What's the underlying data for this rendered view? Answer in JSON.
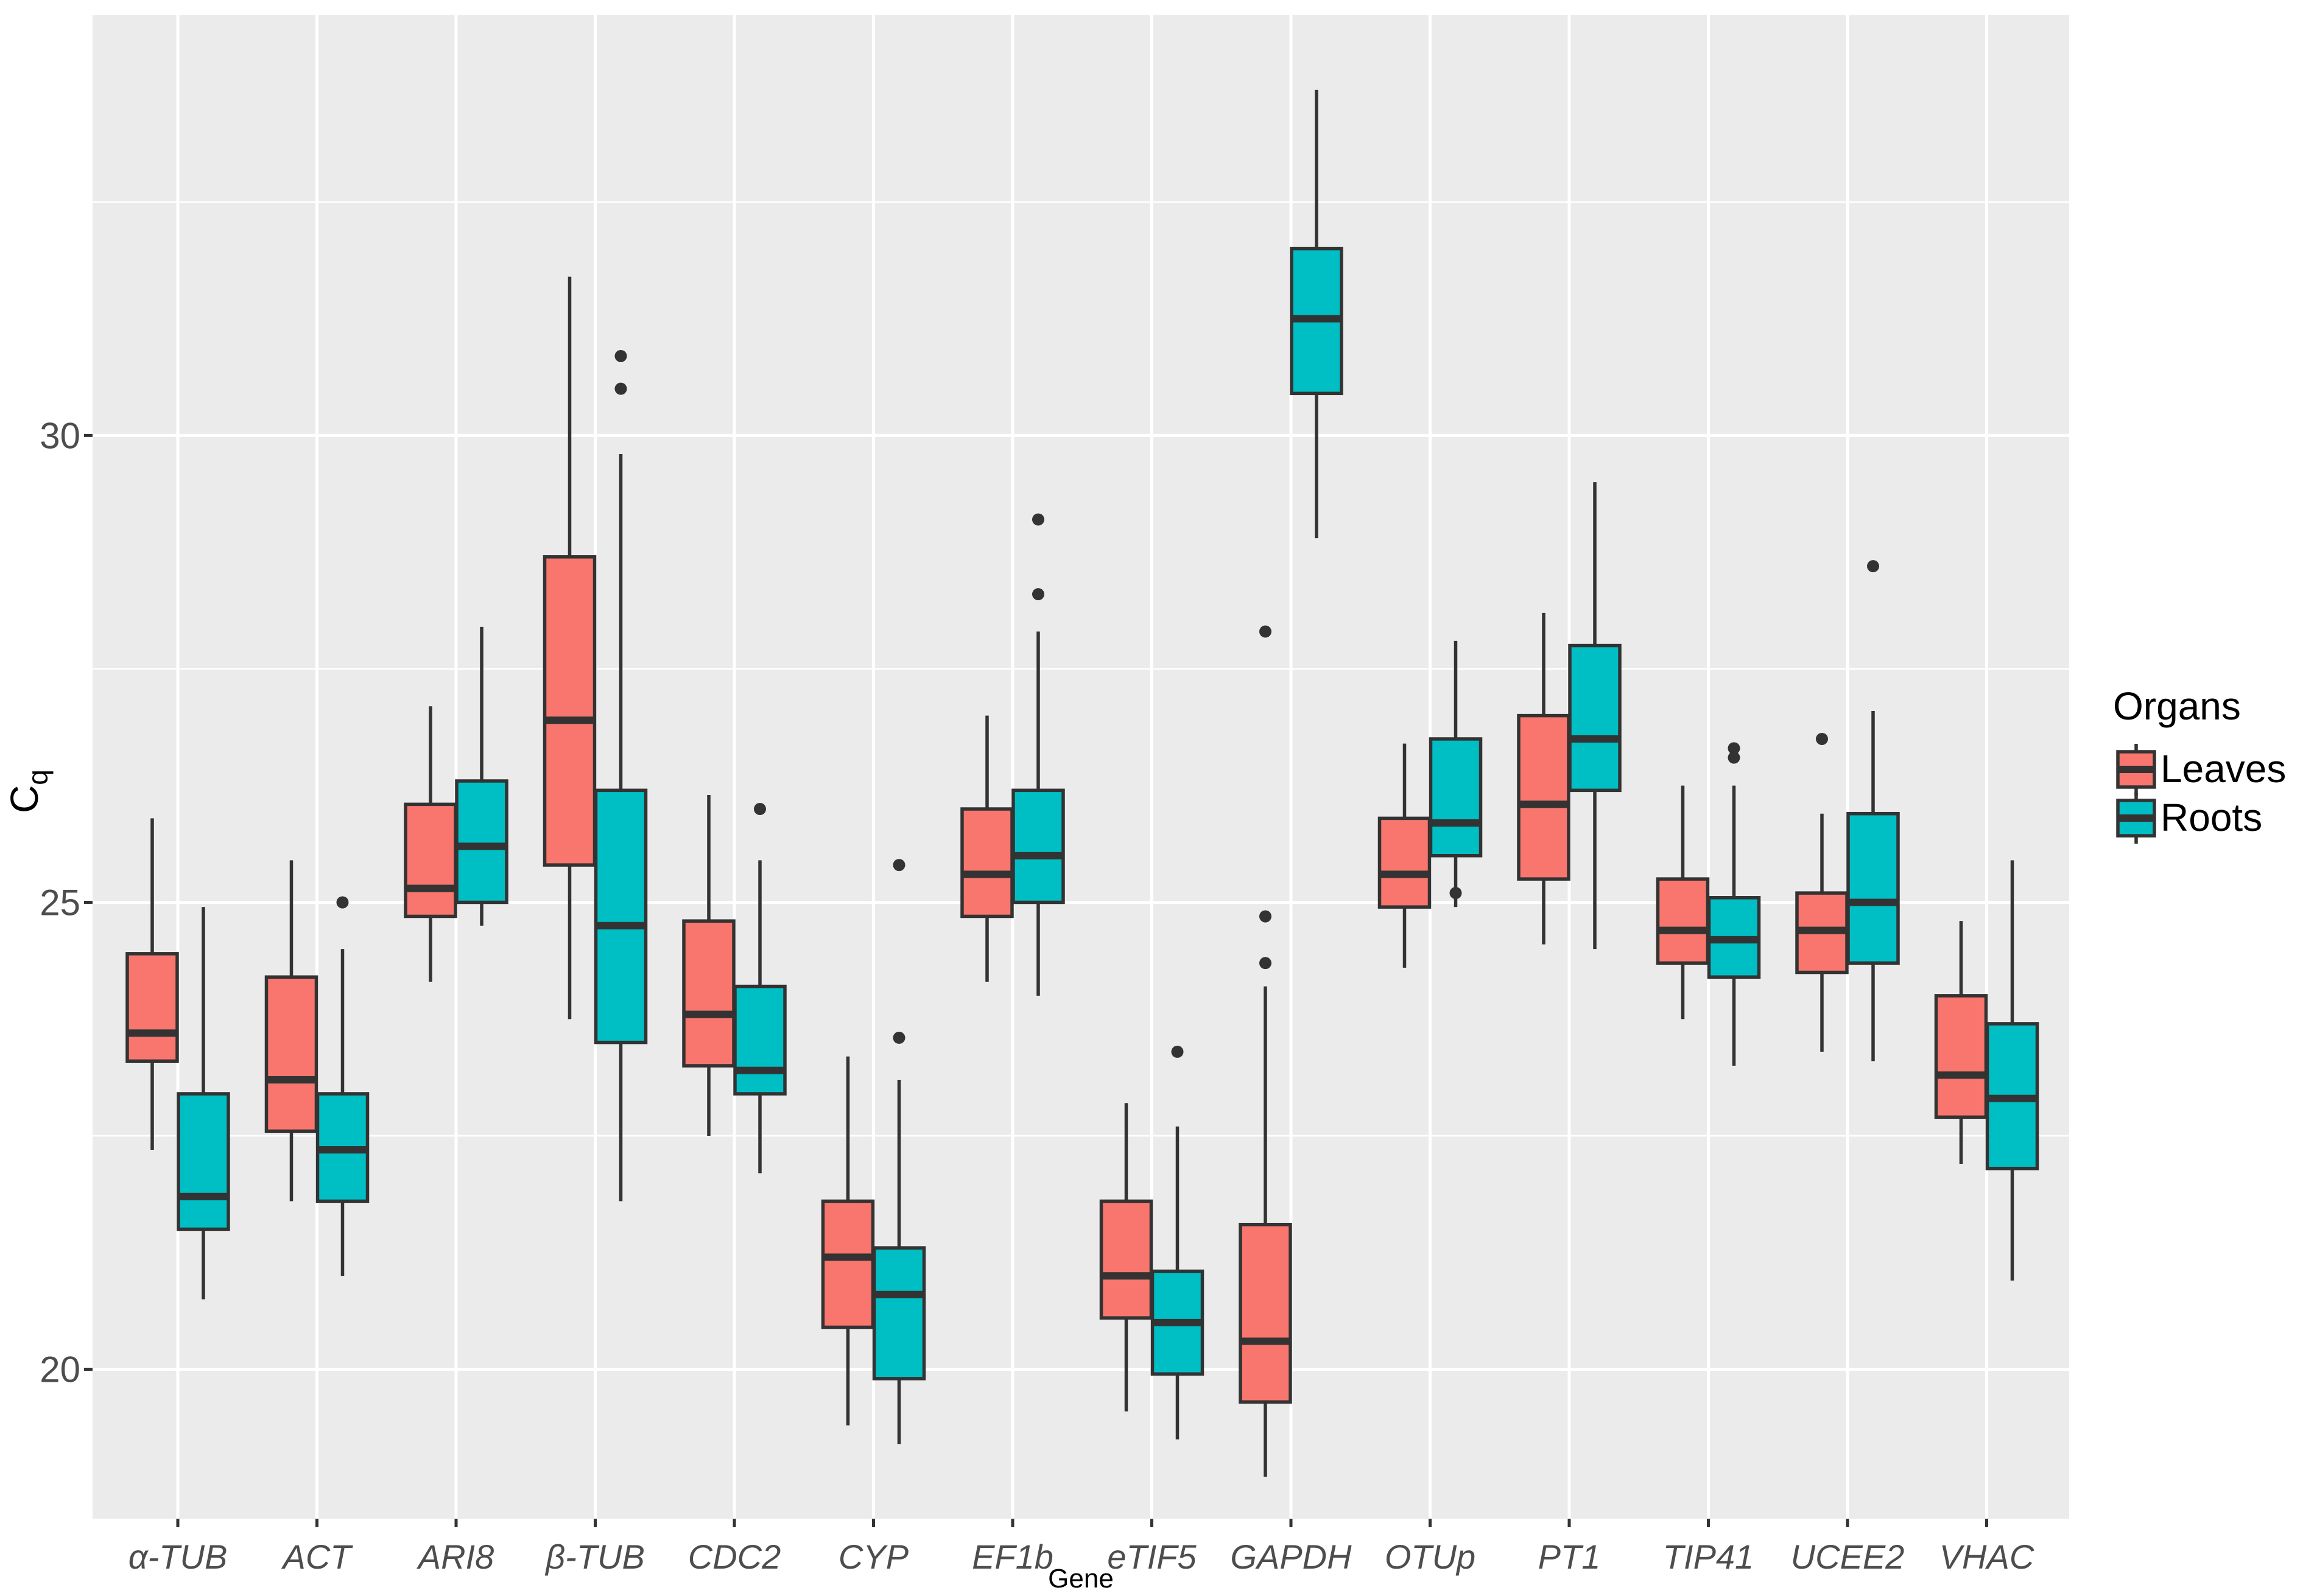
{
  "chart_data": {
    "type": "boxplot",
    "title": "",
    "xlabel": "Gene",
    "ylabel": "C",
    "ylabel_subscript": "q",
    "ylim": [
      18.4,
      34.5
    ],
    "yticks": [
      20,
      25,
      30
    ],
    "grid": true,
    "legend": {
      "title": "Organs",
      "position": "right",
      "entries": [
        {
          "name": "Leaves",
          "color": "#f8766d"
        },
        {
          "name": "Roots",
          "color": "#00bfc4"
        }
      ]
    },
    "categories": [
      "α-TUB",
      "ACT",
      "ARI8",
      "β-TUB",
      "CDC2",
      "CYP",
      "EF1b",
      "eTIF5",
      "GAPDH",
      "OTUp",
      "PT1",
      "TIP41",
      "UCEE2",
      "VHAC"
    ],
    "series": [
      {
        "name": "Leaves",
        "color": "#f8766d",
        "boxes": [
          {
            "whisker_low": 22.35,
            "q1": 23.3,
            "median": 23.6,
            "q3": 24.45,
            "whisker_high": 25.9,
            "outliers": []
          },
          {
            "whisker_low": 21.8,
            "q1": 22.55,
            "median": 23.1,
            "q3": 24.2,
            "whisker_high": 25.45,
            "outliers": []
          },
          {
            "whisker_low": 24.15,
            "q1": 24.85,
            "median": 25.15,
            "q3": 26.05,
            "whisker_high": 27.1,
            "outliers": []
          },
          {
            "whisker_low": 23.75,
            "q1": 25.4,
            "median": 26.95,
            "q3": 28.7,
            "whisker_high": 31.7,
            "outliers": []
          },
          {
            "whisker_low": 22.5,
            "q1": 23.25,
            "median": 23.8,
            "q3": 24.8,
            "whisker_high": 26.15,
            "outliers": []
          },
          {
            "whisker_low": 19.4,
            "q1": 20.45,
            "median": 21.2,
            "q3": 21.8,
            "whisker_high": 23.35,
            "outliers": []
          },
          {
            "whisker_low": 24.15,
            "q1": 24.85,
            "median": 25.3,
            "q3": 26.0,
            "whisker_high": 27.0,
            "outliers": []
          },
          {
            "whisker_low": 19.55,
            "q1": 20.55,
            "median": 21.0,
            "q3": 21.8,
            "whisker_high": 22.85,
            "outliers": []
          },
          {
            "whisker_low": 18.85,
            "q1": 19.65,
            "median": 20.3,
            "q3": 21.55,
            "whisker_high": 24.1,
            "outliers": [
              24.35,
              24.85,
              27.9
            ]
          },
          {
            "whisker_low": 24.3,
            "q1": 24.95,
            "median": 25.3,
            "q3": 25.9,
            "whisker_high": 26.7,
            "outliers": []
          },
          {
            "whisker_low": 24.55,
            "q1": 25.25,
            "median": 26.05,
            "q3": 27.0,
            "whisker_high": 28.1,
            "outliers": []
          },
          {
            "whisker_low": 23.75,
            "q1": 24.35,
            "median": 24.7,
            "q3": 25.25,
            "whisker_high": 26.25,
            "outliers": []
          },
          {
            "whisker_low": 23.4,
            "q1": 24.25,
            "median": 24.7,
            "q3": 25.1,
            "whisker_high": 25.95,
            "outliers": [
              26.75
            ]
          },
          {
            "whisker_low": 22.2,
            "q1": 22.7,
            "median": 23.15,
            "q3": 24.0,
            "whisker_high": 24.8,
            "outliers": []
          }
        ]
      },
      {
        "name": "Roots",
        "color": "#00bfc4",
        "boxes": [
          {
            "whisker_low": 20.75,
            "q1": 21.5,
            "median": 21.85,
            "q3": 22.95,
            "whisker_high": 24.95,
            "outliers": []
          },
          {
            "whisker_low": 21.0,
            "q1": 21.8,
            "median": 22.35,
            "q3": 22.95,
            "whisker_high": 24.5,
            "outliers": [
              25.0
            ]
          },
          {
            "whisker_low": 24.75,
            "q1": 25.0,
            "median": 25.6,
            "q3": 26.3,
            "whisker_high": 27.95,
            "outliers": []
          },
          {
            "whisker_low": 21.8,
            "q1": 23.5,
            "median": 24.75,
            "q3": 26.2,
            "whisker_high": 29.8,
            "outliers": [
              30.5,
              30.85
            ]
          },
          {
            "whisker_low": 22.1,
            "q1": 22.95,
            "median": 23.2,
            "q3": 24.1,
            "whisker_high": 25.45,
            "outliers": [
              26.0
            ]
          },
          {
            "whisker_low": 19.2,
            "q1": 19.9,
            "median": 20.8,
            "q3": 21.3,
            "whisker_high": 23.1,
            "outliers": [
              23.55,
              25.4
            ]
          },
          {
            "whisker_low": 24.0,
            "q1": 25.0,
            "median": 25.5,
            "q3": 26.2,
            "whisker_high": 27.9,
            "outliers": [
              28.3,
              29.1
            ]
          },
          {
            "whisker_low": 19.25,
            "q1": 19.95,
            "median": 20.5,
            "q3": 21.05,
            "whisker_high": 22.6,
            "outliers": [
              23.4
            ]
          },
          {
            "whisker_low": 28.9,
            "q1": 30.45,
            "median": 31.25,
            "q3": 32.0,
            "whisker_high": 33.7,
            "outliers": []
          },
          {
            "whisker_low": 24.95,
            "q1": 25.5,
            "median": 25.85,
            "q3": 26.75,
            "whisker_high": 27.8,
            "outliers": [
              25.1
            ]
          },
          {
            "whisker_low": 24.5,
            "q1": 26.2,
            "median": 26.75,
            "q3": 27.75,
            "whisker_high": 29.5,
            "outliers": []
          },
          {
            "whisker_low": 23.25,
            "q1": 24.2,
            "median": 24.6,
            "q3": 25.05,
            "whisker_high": 26.25,
            "outliers": [
              26.55,
              26.65
            ]
          },
          {
            "whisker_low": 23.3,
            "q1": 24.35,
            "median": 25.0,
            "q3": 25.95,
            "whisker_high": 27.05,
            "outliers": [
              28.6
            ]
          },
          {
            "whisker_low": 20.95,
            "q1": 22.15,
            "median": 22.9,
            "q3": 23.7,
            "whisker_high": 25.45,
            "outliers": []
          }
        ]
      }
    ]
  }
}
